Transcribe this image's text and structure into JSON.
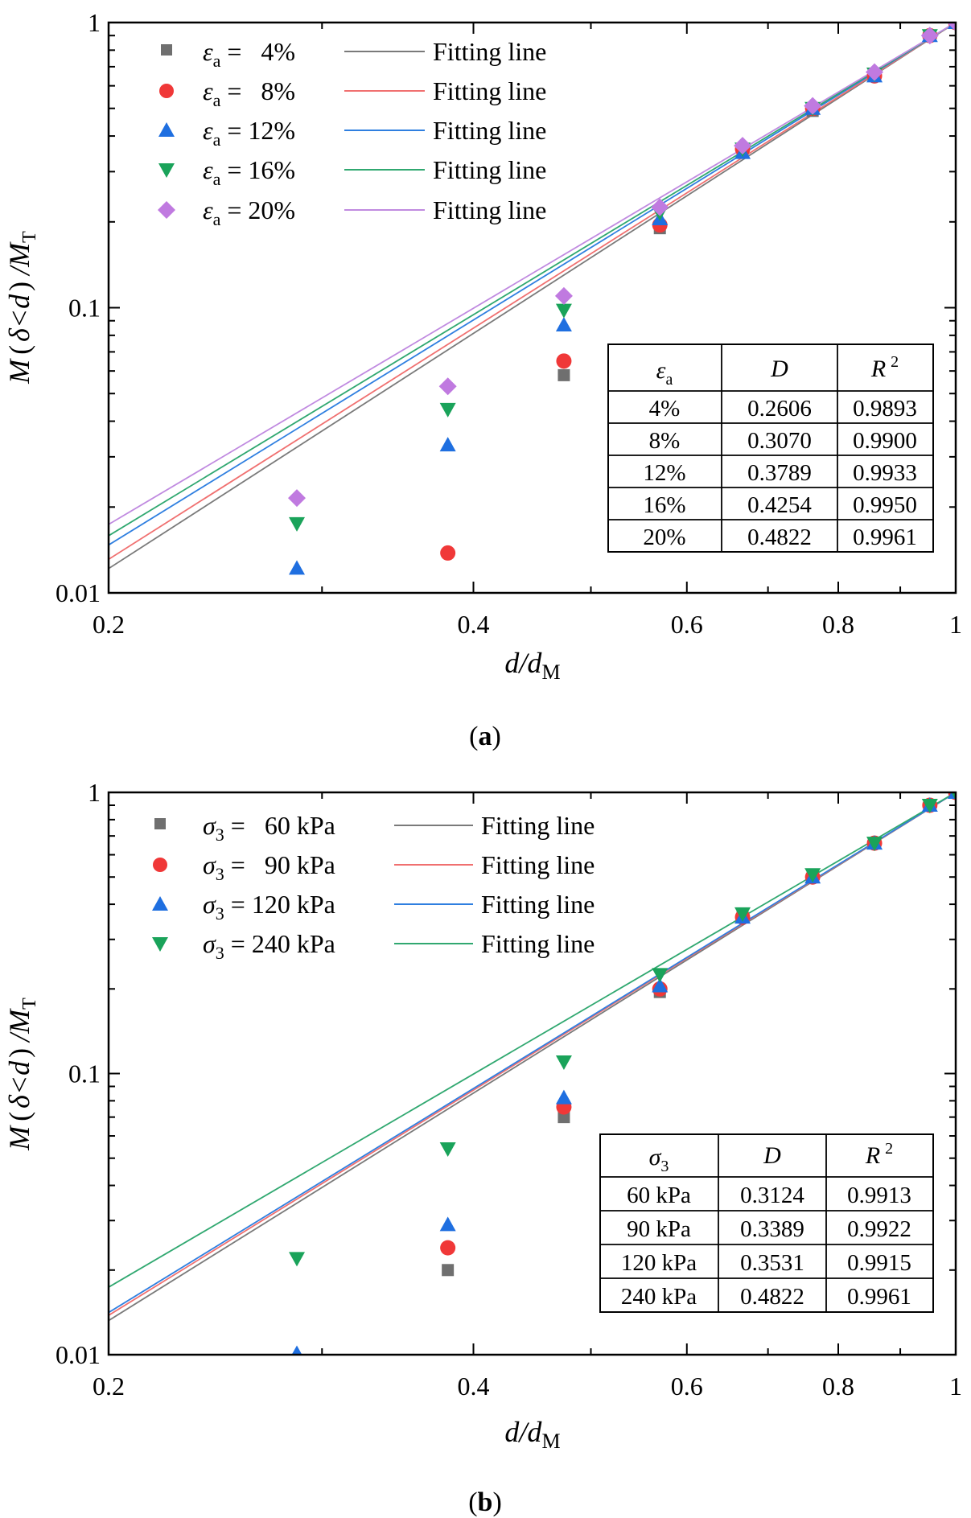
{
  "panels": [
    {
      "caption_letter": "a",
      "ylabel": {
        "M": "M",
        "paren_open": "(",
        "delta": "δ",
        "lt": "<",
        "d": "d",
        "paren_close": ")",
        "slash": "/M",
        "sub": "T"
      },
      "xlabel": {
        "main": "d/d",
        "sub": "M"
      },
      "legend": {
        "symbol": "ε",
        "symbol_sub": "a",
        "entries": [
          {
            "value": "=   4%",
            "line_label": "Fitting line"
          },
          {
            "value": "=   8%",
            "line_label": "Fitting line"
          },
          {
            "value": "= 12%",
            "line_label": "Fitting line"
          },
          {
            "value": "= 16%",
            "line_label": "Fitting line"
          },
          {
            "value": "= 20%",
            "line_label": "Fitting line"
          }
        ]
      },
      "table": {
        "header": {
          "param": "ε",
          "param_sub": "a",
          "d": "D",
          "r": "R",
          "r_sup": "2"
        },
        "rows": [
          {
            "label": "4%",
            "D": "0.2606",
            "R2": "0.9893"
          },
          {
            "label": "8%",
            "D": "0.3070",
            "R2": "0.9900"
          },
          {
            "label": "12%",
            "D": "0.3789",
            "R2": "0.9933"
          },
          {
            "label": "16%",
            "D": "0.4254",
            "R2": "0.9950"
          },
          {
            "label": "20%",
            "D": "0.4822",
            "R2": "0.9961"
          }
        ]
      }
    },
    {
      "caption_letter": "b",
      "ylabel": {
        "M": "M",
        "paren_open": "(",
        "delta": "δ",
        "lt": "<",
        "d": "d",
        "paren_close": ")",
        "slash": "/M",
        "sub": "T"
      },
      "xlabel": {
        "main": "d/d",
        "sub": "M"
      },
      "legend": {
        "symbol": "σ",
        "symbol_sub": "3",
        "entries": [
          {
            "value": "=   60 kPa",
            "line_label": "Fitting line"
          },
          {
            "value": "=   90 kPa",
            "line_label": "Fitting line"
          },
          {
            "value": "= 120 kPa",
            "line_label": "Fitting line"
          },
          {
            "value": "= 240 kPa",
            "line_label": "Fitting line"
          }
        ]
      },
      "table": {
        "header": {
          "param": "σ",
          "param_sub": "3",
          "d": "D",
          "r": "R",
          "r_sup": "2"
        },
        "rows": [
          {
            "label": "60 kPa",
            "D": "0.3124",
            "R2": "0.9913"
          },
          {
            "label": "90 kPa",
            "D": "0.3389",
            "R2": "0.9922"
          },
          {
            "label": "120 kPa",
            "D": "0.3531",
            "R2": "0.9915"
          },
          {
            "label": "240 kPa",
            "D": "0.4822",
            "R2": "0.9961"
          }
        ]
      }
    }
  ],
  "chart_data": [
    {
      "type": "scatter",
      "title": "",
      "xlabel": "d/dM",
      "ylabel": "M(δ<d)/MT",
      "xscale": "log",
      "yscale": "log",
      "xlim": [
        0.2,
        1
      ],
      "ylim": [
        0.01,
        1
      ],
      "xticks": [
        0.2,
        0.4,
        0.6,
        0.8,
        1
      ],
      "xtick_labels": [
        "0.2",
        "0.4",
        "0.6",
        "0.8",
        "1"
      ],
      "yticks": [
        0.01,
        0.1,
        1
      ],
      "ytick_labels": [
        "0.01",
        "0.1",
        "1"
      ],
      "legend_position": "top-left",
      "series": [
        {
          "name": "εa = 4%",
          "marker": "square",
          "color": "#6f6f6f",
          "line_color": "#7a7a7a",
          "x": [
            0.475,
            0.57,
            0.667,
            0.762,
            0.857,
            0.952,
            1.0
          ],
          "y": [
            0.058,
            0.19,
            0.36,
            0.49,
            0.65,
            0.9,
            1.0
          ],
          "fit": {
            "D": 0.2606,
            "y_at_0.2": 0.0125
          }
        },
        {
          "name": "εa = 8%",
          "marker": "circle",
          "color": "#f03838",
          "line_color": "#f07070",
          "x": [
            0.381,
            0.475,
            0.57,
            0.667,
            0.762,
            0.857,
            0.952,
            1.0
          ],
          "y": [
            0.0138,
            0.065,
            0.195,
            0.36,
            0.5,
            0.65,
            0.9,
            1.0
          ],
          "fit": {
            "D": 0.307,
            "y_at_0.2": 0.0133
          }
        },
        {
          "name": "εa = 12%",
          "marker": "triangle-up",
          "color": "#1f6fe0",
          "line_color": "#2f7fe0",
          "x": [
            0.286,
            0.381,
            0.475,
            0.57,
            0.667,
            0.762,
            0.857,
            0.952,
            1.0
          ],
          "y": [
            0.0122,
            0.033,
            0.087,
            0.205,
            0.35,
            0.5,
            0.65,
            0.9,
            1.0
          ],
          "fit": {
            "D": 0.3789,
            "y_at_0.2": 0.015
          }
        },
        {
          "name": "εa = 16%",
          "marker": "triangle-down",
          "color": "#1aa35a",
          "line_color": "#30a870",
          "x": [
            0.286,
            0.381,
            0.475,
            0.57,
            0.667,
            0.762,
            0.857,
            0.952,
            1.0
          ],
          "y": [
            0.0175,
            0.044,
            0.098,
            0.215,
            0.36,
            0.5,
            0.66,
            0.9,
            1.0
          ],
          "fit": {
            "D": 0.4254,
            "y_at_0.2": 0.016
          }
        },
        {
          "name": "εa = 20%",
          "marker": "diamond",
          "color": "#c07ae0",
          "line_color": "#c08ae0",
          "x": [
            0.286,
            0.381,
            0.475,
            0.57,
            0.667,
            0.762,
            0.857,
            0.952,
            1.0
          ],
          "y": [
            0.0215,
            0.053,
            0.11,
            0.225,
            0.37,
            0.51,
            0.67,
            0.9,
            1.0
          ],
          "fit": {
            "D": 0.4822,
            "y_at_0.2": 0.0172
          }
        }
      ]
    },
    {
      "type": "scatter",
      "title": "",
      "xlabel": "d/dM",
      "ylabel": "M(δ<d)/MT",
      "xscale": "log",
      "yscale": "log",
      "xlim": [
        0.2,
        1
      ],
      "ylim": [
        0.01,
        1
      ],
      "xticks": [
        0.2,
        0.4,
        0.6,
        0.8,
        1
      ],
      "xtick_labels": [
        "0.2",
        "0.4",
        "0.6",
        "0.8",
        "1"
      ],
      "yticks": [
        0.01,
        0.1,
        1
      ],
      "ytick_labels": [
        "0.01",
        "0.1",
        "1"
      ],
      "legend_position": "top-left",
      "series": [
        {
          "name": "σ3 = 60 kPa",
          "marker": "square",
          "color": "#6f6f6f",
          "line_color": "#7a7a7a",
          "x": [
            0.381,
            0.475,
            0.57,
            0.667,
            0.762,
            0.857,
            0.952,
            1.0
          ],
          "y": [
            0.02,
            0.07,
            0.195,
            0.36,
            0.5,
            0.66,
            0.9,
            1.0
          ],
          "fit": {
            "D": 0.3124,
            "y_at_0.2": 0.0137
          }
        },
        {
          "name": "σ3 = 90 kPa",
          "marker": "circle",
          "color": "#f03838",
          "line_color": "#f07070",
          "x": [
            0.381,
            0.475,
            0.57,
            0.667,
            0.762,
            0.857,
            0.952,
            1.0
          ],
          "y": [
            0.024,
            0.076,
            0.2,
            0.36,
            0.5,
            0.66,
            0.9,
            1.0
          ],
          "fit": {
            "D": 0.3389,
            "y_at_0.2": 0.0142
          }
        },
        {
          "name": "σ3 = 120 kPa",
          "marker": "triangle-up",
          "color": "#1f6fe0",
          "line_color": "#2f7fe0",
          "x": [
            0.286,
            0.381,
            0.475,
            0.57,
            0.667,
            0.762,
            0.857,
            0.952,
            1.0
          ],
          "y": [
            0.0101,
            0.029,
            0.082,
            0.205,
            0.36,
            0.5,
            0.66,
            0.9,
            1.0
          ],
          "fit": {
            "D": 0.3531,
            "y_at_0.2": 0.0145
          }
        },
        {
          "name": "σ3 = 240 kPa",
          "marker": "triangle-down",
          "color": "#1aa35a",
          "line_color": "#30a870",
          "x": [
            0.286,
            0.381,
            0.475,
            0.57,
            0.667,
            0.762,
            0.857,
            0.952,
            1.0
          ],
          "y": [
            0.022,
            0.054,
            0.11,
            0.225,
            0.37,
            0.51,
            0.66,
            0.9,
            1.0
          ],
          "fit": {
            "D": 0.4822,
            "y_at_0.2": 0.0177
          }
        }
      ]
    }
  ]
}
